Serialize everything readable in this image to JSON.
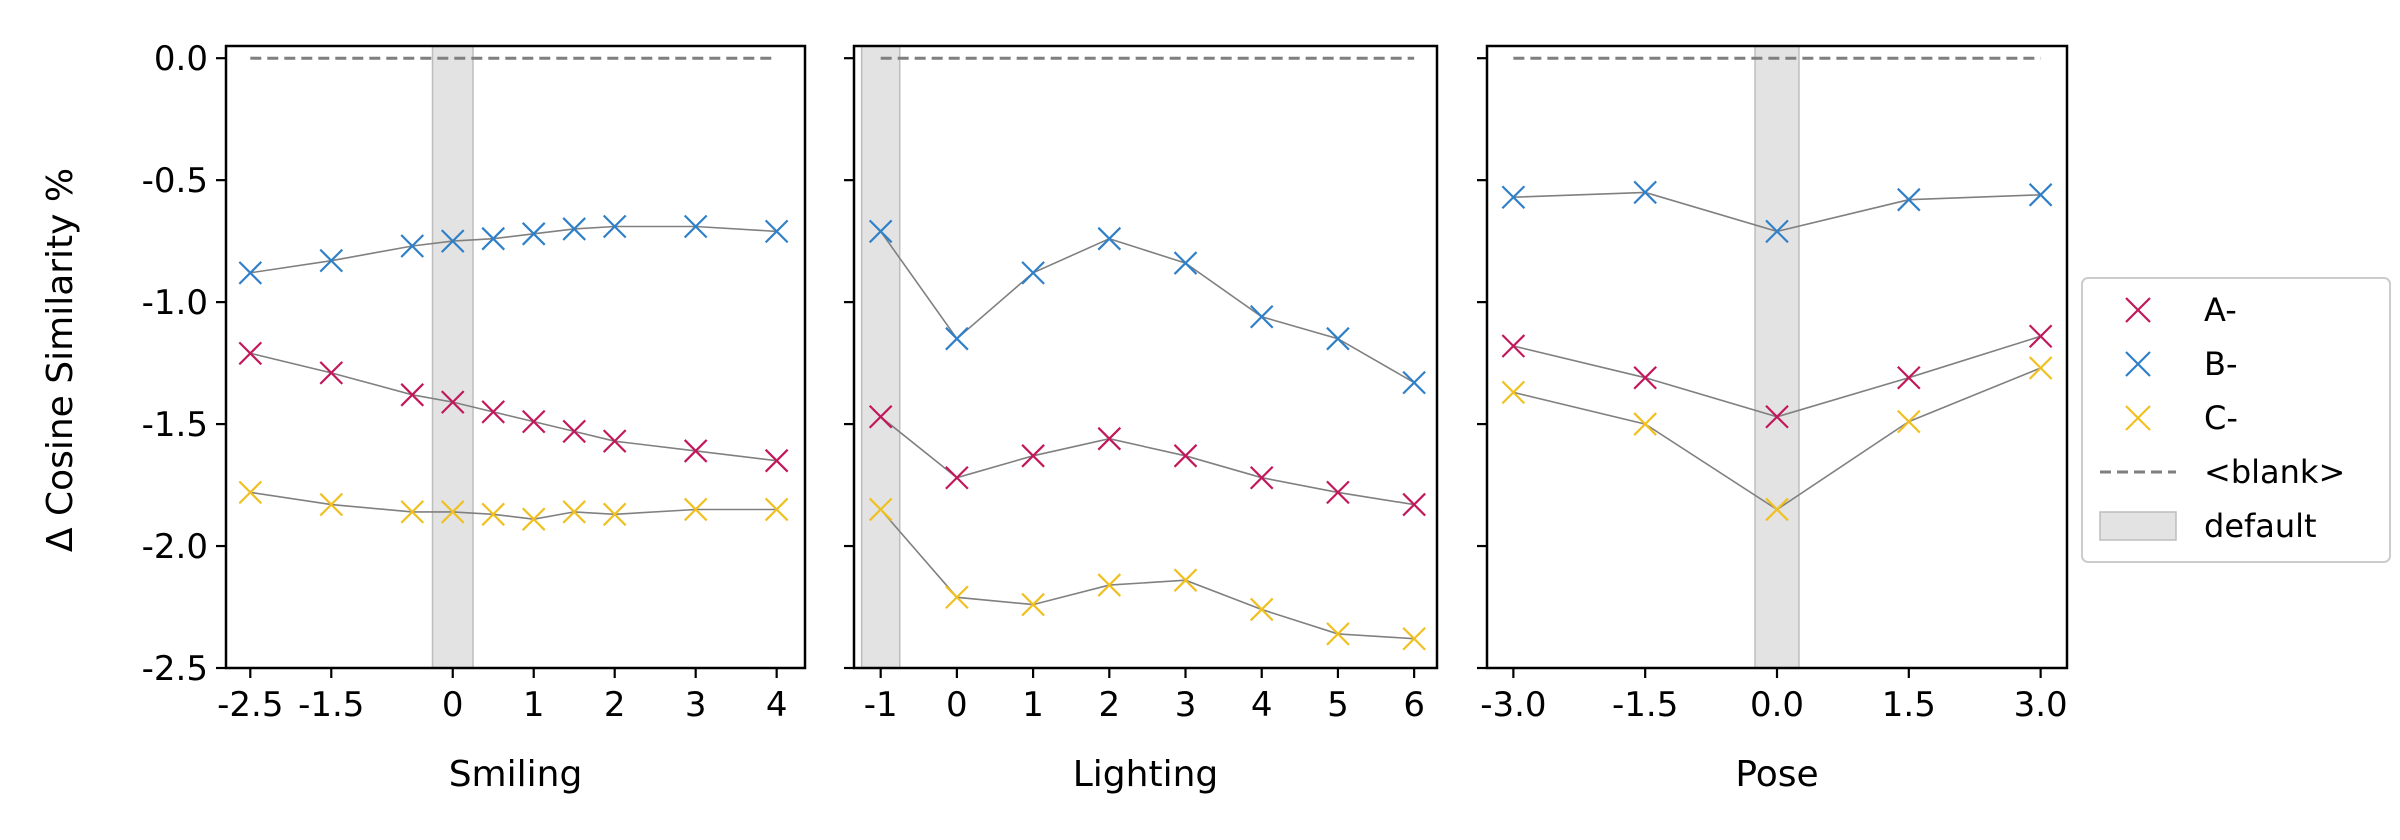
{
  "chart_data": {
    "type": "line",
    "ylabel": "Δ Cosine Similarity %",
    "ylim": [
      -2.5,
      0.05
    ],
    "yticks": [
      0.0,
      -0.5,
      -1.0,
      -1.5,
      -2.0,
      -2.5
    ],
    "ytick_labels": [
      "0.0",
      "-0.5",
      "-1.0",
      "-1.5",
      "-2.0",
      "-2.5"
    ],
    "colors": {
      "A": "#c2185b",
      "B": "#2f80c8",
      "C": "#f0c020",
      "blank": "#7f7f7f",
      "default": "#d9d9d9",
      "connector": "#808080"
    },
    "legend": {
      "placement": "right",
      "entries": [
        {
          "key": "A",
          "label": "A-",
          "kind": "marker"
        },
        {
          "key": "B",
          "label": "B-",
          "kind": "marker"
        },
        {
          "key": "C",
          "label": "C-",
          "kind": "marker"
        },
        {
          "key": "blank",
          "label": "<blank>",
          "kind": "dashed"
        },
        {
          "key": "default",
          "label": "default",
          "kind": "patch"
        }
      ]
    },
    "panels": [
      {
        "xlabel": "Smiling",
        "xlim": [
          -2.8,
          4.35
        ],
        "xticks": [
          -2.5,
          -1.5,
          0,
          1,
          2,
          3,
          4
        ],
        "xtick_labels": [
          "-2.5",
          "-1.5",
          "0",
          "1",
          "2",
          "3",
          "4"
        ],
        "default_band": [
          -0.25,
          0.25
        ],
        "blank_line": {
          "x": [
            -2.5,
            4
          ],
          "y": 0.0
        },
        "x": [
          -2.5,
          -1.5,
          -0.5,
          0,
          0.5,
          1,
          1.5,
          2,
          3,
          4
        ],
        "series": [
          {
            "name": "A-",
            "key": "A",
            "values": [
              -1.21,
              -1.29,
              -1.38,
              -1.41,
              -1.45,
              -1.49,
              -1.53,
              -1.57,
              -1.61,
              -1.65
            ]
          },
          {
            "name": "B-",
            "key": "B",
            "values": [
              -0.88,
              -0.83,
              -0.77,
              -0.75,
              -0.74,
              -0.72,
              -0.7,
              -0.69,
              -0.69,
              -0.71
            ]
          },
          {
            "name": "C-",
            "key": "C",
            "values": [
              -1.78,
              -1.83,
              -1.86,
              -1.86,
              -1.87,
              -1.89,
              -1.86,
              -1.87,
              -1.85,
              -1.85
            ]
          }
        ]
      },
      {
        "xlabel": "Lighting",
        "xlim": [
          -1.35,
          6.3
        ],
        "xticks": [
          -1,
          0,
          1,
          2,
          3,
          4,
          5,
          6
        ],
        "xtick_labels": [
          "-1",
          "0",
          "1",
          "2",
          "3",
          "4",
          "5",
          "6"
        ],
        "default_band": [
          -1.25,
          -0.75
        ],
        "blank_line": {
          "x": [
            -1,
            6
          ],
          "y": 0.0
        },
        "x": [
          -1,
          0,
          1,
          2,
          3,
          4,
          5,
          6
        ],
        "series": [
          {
            "name": "A-",
            "key": "A",
            "values": [
              -1.47,
              -1.72,
              -1.63,
              -1.56,
              -1.63,
              -1.72,
              -1.78,
              -1.83
            ]
          },
          {
            "name": "B-",
            "key": "B",
            "values": [
              -0.71,
              -1.15,
              -0.88,
              -0.74,
              -0.84,
              -1.06,
              -1.15,
              -1.33
            ]
          },
          {
            "name": "C-",
            "key": "C",
            "values": [
              -1.85,
              -2.21,
              -2.24,
              -2.16,
              -2.14,
              -2.26,
              -2.36,
              -2.38
            ]
          }
        ]
      },
      {
        "xlabel": "Pose",
        "xlim": [
          -3.3,
          3.3
        ],
        "xticks": [
          -3.0,
          -1.5,
          0.0,
          1.5,
          3.0
        ],
        "xtick_labels": [
          "-3.0",
          "-1.5",
          "0.0",
          "1.5",
          "3.0"
        ],
        "default_band": [
          -0.25,
          0.25
        ],
        "blank_line": {
          "x": [
            -3.0,
            3.0
          ],
          "y": 0.0
        },
        "x": [
          -3.0,
          -1.5,
          0.0,
          1.5,
          3.0
        ],
        "series": [
          {
            "name": "A-",
            "key": "A",
            "values": [
              -1.18,
              -1.31,
              -1.47,
              -1.31,
              -1.14
            ]
          },
          {
            "name": "B-",
            "key": "B",
            "values": [
              -0.57,
              -0.55,
              -0.71,
              -0.58,
              -0.56
            ]
          },
          {
            "name": "C-",
            "key": "C",
            "values": [
              -1.37,
              -1.5,
              -1.85,
              -1.49,
              -1.27
            ]
          }
        ]
      }
    ]
  }
}
